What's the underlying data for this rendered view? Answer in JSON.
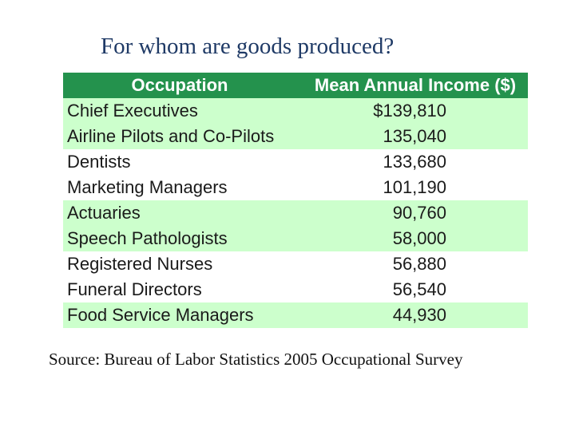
{
  "title": "For whom are goods produced?",
  "table": {
    "headers": [
      "Occupation",
      "Mean Annual Income ($)"
    ],
    "rows": [
      {
        "occupation": "Chief Executives",
        "income": "$139,810"
      },
      {
        "occupation": "Airline Pilots and Co-Pilots",
        "income": "135,040"
      },
      {
        "occupation": "Dentists",
        "income": "133,680"
      },
      {
        "occupation": "Marketing Managers",
        "income": "101,190"
      },
      {
        "occupation": "Actuaries",
        "income": "90,760"
      },
      {
        "occupation": "Speech Pathologists",
        "income": "58,000"
      },
      {
        "occupation": "Registered Nurses",
        "income": "56,880"
      },
      {
        "occupation": "Funeral Directors",
        "income": "56,540"
      },
      {
        "occupation": "Food Service Managers",
        "income": "44,930"
      }
    ]
  },
  "source": "Source: Bureau of Labor Statistics 2005 Occupational Survey",
  "colors": {
    "header_bg": "#24924d",
    "band_bg": "#ccffcc",
    "title_color": "#1f3a66"
  }
}
